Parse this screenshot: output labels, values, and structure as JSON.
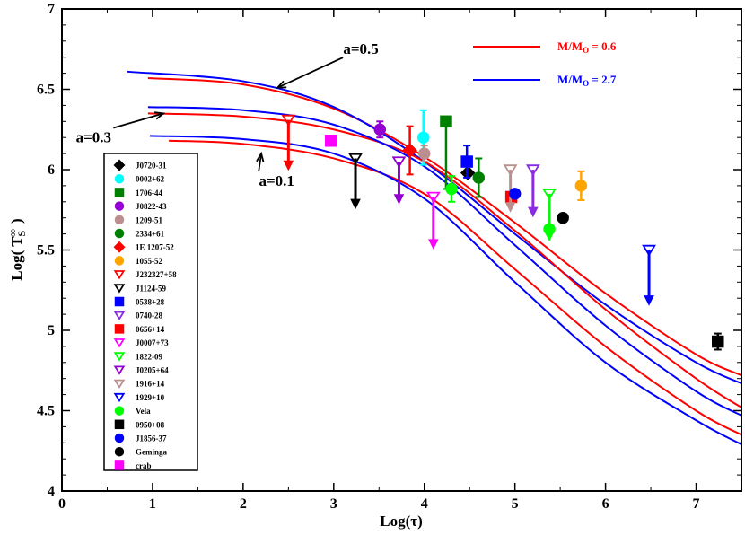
{
  "chart_data": {
    "type": "scatter",
    "title": "",
    "xlabel": "Log(τ)",
    "ylabel": "Log( T_S^∞ )",
    "xlim": [
      0,
      7.5
    ],
    "ylim": [
      4,
      7
    ],
    "xticks": [
      "0",
      "1",
      "2",
      "3",
      "4",
      "5",
      "6",
      "7"
    ],
    "yticks": [
      "4",
      "4.5",
      "5",
      "5.5",
      "6",
      "6.5",
      "7"
    ],
    "mass_legend": [
      {
        "label_base": "M/M",
        "label_sub": "O",
        "label_tail": " = 0.6",
        "color": "#ff0000"
      },
      {
        "label_base": "M/M",
        "label_sub": "O",
        "label_tail": " = 2.7",
        "color": "#0000ff"
      }
    ],
    "annotations": [
      {
        "text": "a=0.5",
        "tx": 3.3,
        "ty": 6.72,
        "ax": 2.38,
        "ay": 6.51
      },
      {
        "text": "a=0.3",
        "tx": 0.35,
        "ty": 6.17,
        "ax": 1.12,
        "ay": 6.35
      },
      {
        "text": "a=0.1",
        "tx": 2.37,
        "ty": 5.9,
        "ax": 2.2,
        "ay": 6.1
      }
    ],
    "curves": [
      {
        "name": "M/M_O = 0.6, a=0.5",
        "color": "#ff0000",
        "x": [
          0.95,
          2,
          3,
          4,
          5,
          6,
          7,
          7.5
        ],
        "y": [
          6.57,
          6.53,
          6.38,
          6.08,
          5.67,
          5.23,
          4.85,
          4.72
        ]
      },
      {
        "name": "M/M_O = 2.7, a=0.5",
        "color": "#0000ff",
        "x": [
          0.72,
          2,
          3,
          4,
          5,
          6,
          7,
          7.5
        ],
        "y": [
          6.61,
          6.55,
          6.39,
          6.05,
          5.6,
          5.16,
          4.8,
          4.67
        ]
      },
      {
        "name": "M/M_O = 0.6, a=0.3",
        "color": "#ff0000",
        "x": [
          0.95,
          2,
          3,
          4,
          5,
          6,
          7,
          7.5
        ],
        "y": [
          6.35,
          6.33,
          6.25,
          6.05,
          5.62,
          5.13,
          4.7,
          4.52
        ]
      },
      {
        "name": "M/M_O = 2.7, a=0.3",
        "color": "#0000ff",
        "x": [
          0.95,
          2,
          3,
          4,
          5,
          6,
          7,
          7.5
        ],
        "y": [
          6.39,
          6.37,
          6.28,
          6.02,
          5.53,
          5.03,
          4.62,
          4.47
        ]
      },
      {
        "name": "M/M_O = 0.6, a=0.1",
        "color": "#ff0000",
        "x": [
          1.18,
          2,
          3,
          4,
          5,
          6,
          7,
          7.5
        ],
        "y": [
          6.18,
          6.16,
          6.07,
          5.85,
          5.38,
          4.9,
          4.5,
          4.35
        ]
      },
      {
        "name": "M/M_O = 2.7, a=0.1",
        "color": "#0000ff",
        "x": [
          0.97,
          2,
          3,
          4,
          5,
          6,
          7,
          7.5
        ],
        "y": [
          6.21,
          6.19,
          6.1,
          5.82,
          5.3,
          4.8,
          4.44,
          4.29
        ]
      }
    ],
    "series": [
      {
        "name": "J0720-31",
        "marker": "diamond",
        "color": "#000000",
        "fill": true,
        "points": [
          {
            "x": 4.48,
            "y": 5.98
          }
        ]
      },
      {
        "name": "0002+62",
        "marker": "circle",
        "color": "#00ffff",
        "fill": true,
        "points": [
          {
            "x": 3.99,
            "y": 6.2,
            "err_lo": 0.17,
            "err_hi": 0.17
          }
        ]
      },
      {
        "name": "1706-44",
        "marker": "square",
        "color": "#008000",
        "fill": true,
        "points": [
          {
            "x": 4.24,
            "y": 6.3,
            "err_lo": 0.42,
            "err_hi": 0
          }
        ]
      },
      {
        "name": "J0822-43",
        "marker": "circle",
        "color": "#9400d3",
        "fill": true,
        "points": [
          {
            "x": 3.51,
            "y": 6.25,
            "err_lo": 0.05,
            "err_hi": 0.05
          }
        ]
      },
      {
        "name": "1209-51",
        "marker": "circle",
        "color": "#bc8f8f",
        "fill": true,
        "points": [
          {
            "x": 4.0,
            "y": 6.1,
            "err_lo": 0.05,
            "err_hi": 0.05
          }
        ]
      },
      {
        "name": "2334+61",
        "marker": "circle",
        "color": "#008000",
        "fill": true,
        "points": [
          {
            "x": 4.6,
            "y": 5.95,
            "err_lo": 0.12,
            "err_hi": 0.12
          }
        ]
      },
      {
        "name": "1E 1207-52",
        "marker": "diamond",
        "color": "#ff0000",
        "fill": true,
        "points": [
          {
            "x": 3.84,
            "y": 6.12,
            "err_lo": 0.15,
            "err_hi": 0.15
          }
        ]
      },
      {
        "name": "1055-52",
        "marker": "circle",
        "color": "#ffa500",
        "fill": true,
        "points": [
          {
            "x": 5.73,
            "y": 5.9,
            "err_lo": 0.09,
            "err_hi": 0.09
          }
        ]
      },
      {
        "name": "J232327+58",
        "marker": "tri-down",
        "color": "#ff0000",
        "fill": false,
        "points": [
          {
            "x": 2.5,
            "y": 6.31,
            "limit_to": 6.01
          }
        ]
      },
      {
        "name": "J1124-59",
        "marker": "tri-down",
        "color": "#000000",
        "fill": false,
        "points": [
          {
            "x": 3.24,
            "y": 6.07,
            "limit_to": 5.77
          }
        ]
      },
      {
        "name": "0538+28",
        "marker": "square",
        "color": "#0000ff",
        "fill": true,
        "points": [
          {
            "x": 4.47,
            "y": 6.05,
            "err_lo": 0.1,
            "err_hi": 0.1
          }
        ]
      },
      {
        "name": "0740-28",
        "marker": "tri-down",
        "color": "#8a2be2",
        "fill": false,
        "points": [
          {
            "x": 5.2,
            "y": 6.0,
            "limit_to": 5.72
          }
        ]
      },
      {
        "name": "0656+14",
        "marker": "square",
        "color": "#ff0000",
        "fill": true,
        "points": [
          {
            "x": 4.96,
            "y": 5.83,
            "err_lo": 0.03,
            "err_hi": 0.03
          }
        ]
      },
      {
        "name": "J0007+73",
        "marker": "tri-down",
        "color": "#ff00ff",
        "fill": false,
        "points": [
          {
            "x": 4.1,
            "y": 5.83,
            "limit_to": 5.52
          }
        ]
      },
      {
        "name": "1822-09",
        "marker": "tri-down",
        "color": "#00ff00",
        "fill": false,
        "points": [
          {
            "x": 5.38,
            "y": 5.85,
            "limit_to": 5.57
          }
        ]
      },
      {
        "name": "J0205+64",
        "marker": "tri-down",
        "color": "#9400d3",
        "fill": false,
        "points": [
          {
            "x": 3.72,
            "y": 6.05,
            "limit_to": 5.8
          }
        ]
      },
      {
        "name": "1916+14",
        "marker": "tri-down",
        "color": "#bc8f8f",
        "fill": false,
        "points": [
          {
            "x": 4.95,
            "y": 6.0,
            "limit_to": 5.75
          }
        ]
      },
      {
        "name": "1929+10",
        "marker": "tri-down",
        "color": "#0000ff",
        "fill": false,
        "points": [
          {
            "x": 6.48,
            "y": 5.5,
            "limit_to": 5.17
          }
        ]
      },
      {
        "name": "Vela",
        "marker": "circle",
        "color": "#00ff00",
        "fill": true,
        "points": [
          {
            "x": 4.3,
            "y": 5.88,
            "err_lo": 0.08,
            "err_hi": 0.08
          },
          {
            "x": 5.38,
            "y": 5.63,
            "err_lo": 0.02,
            "err_hi": 0.02
          }
        ]
      },
      {
        "name": "0950+08",
        "marker": "square",
        "color": "#000000",
        "fill": true,
        "points": [
          {
            "x": 7.24,
            "y": 4.93,
            "err_lo": 0.05,
            "err_hi": 0.05
          }
        ]
      },
      {
        "name": "J1856-37",
        "marker": "circle",
        "color": "#0000ff",
        "fill": true,
        "points": [
          {
            "x": 5.0,
            "y": 5.85
          }
        ]
      },
      {
        "name": "Geminga",
        "marker": "circle",
        "color": "#000000",
        "fill": true,
        "points": [
          {
            "x": 5.53,
            "y": 5.7
          }
        ]
      },
      {
        "name": "crab",
        "marker": "square",
        "color": "#ff00ff",
        "fill": true,
        "points": [
          {
            "x": 2.97,
            "y": 6.18
          }
        ]
      }
    ]
  }
}
